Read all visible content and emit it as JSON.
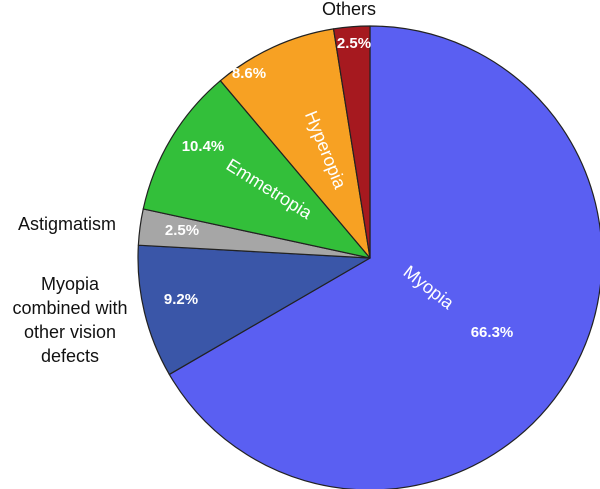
{
  "chart_data": {
    "type": "pie",
    "title": "",
    "slices": [
      {
        "label": "Myopia",
        "value": 66.3,
        "value_label": "66.3%",
        "color": "#5a5ff2"
      },
      {
        "label": "Myopia combined with other vision defects",
        "value": 9.2,
        "value_label": "9.2%",
        "color": "#3a56a8"
      },
      {
        "label": "Astigmatism",
        "value": 2.5,
        "value_label": "2.5%",
        "color": "#a6a6a6"
      },
      {
        "label": "Emmetropia",
        "value": 10.4,
        "value_label": "10.4%",
        "color": "#33bf3a"
      },
      {
        "label": "Hyperopia",
        "value": 8.6,
        "value_label": "8.6%",
        "color": "#f7a123"
      },
      {
        "label": "Others",
        "value": 2.5,
        "value_label": "2.5%",
        "color": "#a6191f"
      }
    ],
    "outer_labels": {
      "others": "Others",
      "astigmatism": "Astigmatism",
      "combined": [
        "Myopia",
        "combined with",
        "other vision",
        "defects"
      ]
    },
    "inner_labels": {
      "myopia": "Myopia",
      "emmetropia": "Emmetropia",
      "hyperopia": "Hyperopia"
    },
    "slice_outline": "#222222"
  }
}
